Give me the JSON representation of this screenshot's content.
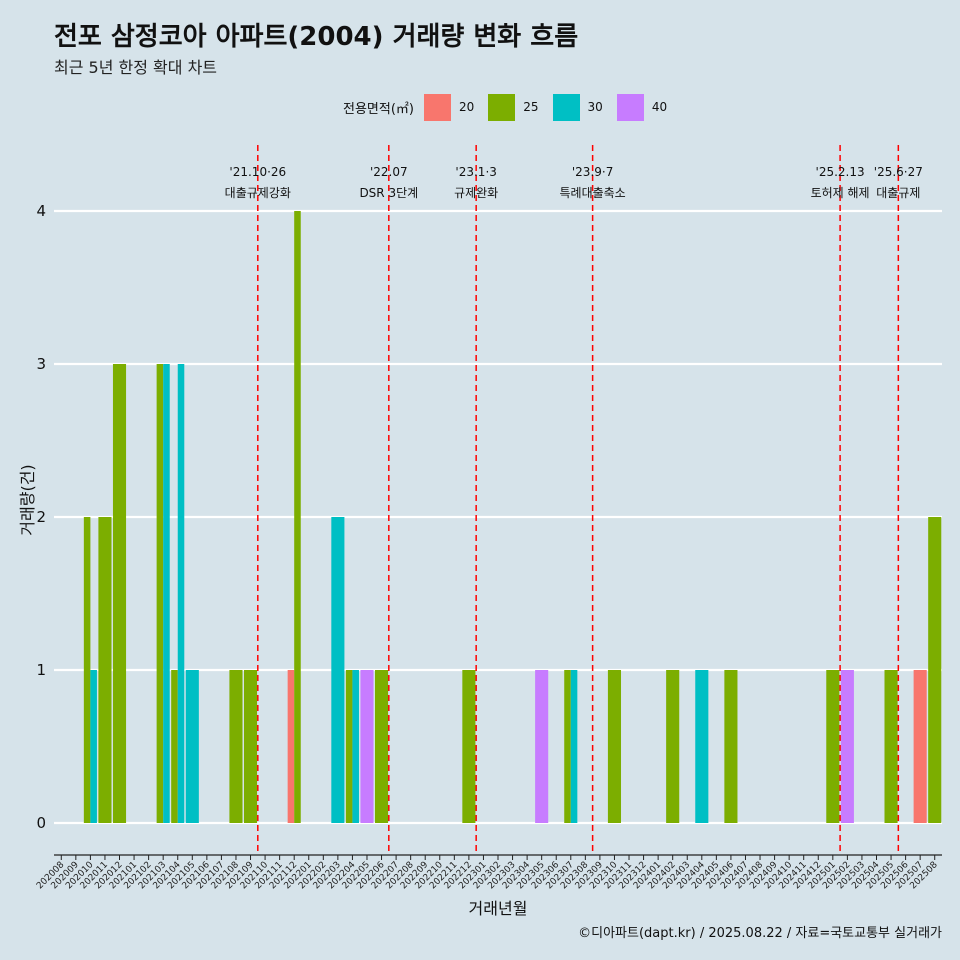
{
  "title": "전포 삼정코아 아파트(2004) 거래량 변화 흐름",
  "subtitle": "최근 5년 한정 확대 차트",
  "caption": "©디아파트(dapt.kr) / 2025.08.22 / 자료=국토교통부 실거래가",
  "legend": {
    "title": "전용면적(㎡)",
    "items": [
      {
        "label": "20",
        "color": "#f8766d"
      },
      {
        "label": "25",
        "color": "#7cae00"
      },
      {
        "label": "30",
        "color": "#00bfc4"
      },
      {
        "label": "40",
        "color": "#c77cff"
      }
    ]
  },
  "chart_data": {
    "type": "bar",
    "xlabel": "거래년월",
    "ylabel": "거래량(건)",
    "ylim": [
      0,
      4
    ],
    "yticks": [
      0,
      1,
      2,
      3,
      4
    ],
    "grid": true,
    "categories": [
      "202008",
      "202009",
      "202010",
      "202011",
      "202012",
      "202101",
      "202102",
      "202103",
      "202104",
      "202105",
      "202106",
      "202107",
      "202108",
      "202109",
      "202110",
      "202111",
      "202112",
      "202201",
      "202202",
      "202203",
      "202204",
      "202205",
      "202206",
      "202207",
      "202208",
      "202209",
      "202210",
      "202211",
      "202212",
      "202301",
      "202302",
      "202303",
      "202304",
      "202305",
      "202306",
      "202307",
      "202308",
      "202309",
      "202310",
      "202311",
      "202312",
      "202401",
      "202402",
      "202403",
      "202404",
      "202405",
      "202406",
      "202407",
      "202408",
      "202409",
      "202410",
      "202411",
      "202412",
      "202501",
      "202502",
      "202503",
      "202504",
      "202505",
      "202506",
      "202507",
      "202508"
    ],
    "series": [
      {
        "name": "20",
        "color": "#f8766d",
        "values": [
          0,
          0,
          0,
          0,
          0,
          0,
          0,
          0,
          0,
          0,
          0,
          0,
          0,
          0,
          0,
          0,
          1,
          0,
          0,
          0,
          0,
          0,
          0,
          0,
          0,
          0,
          0,
          0,
          0,
          0,
          0,
          0,
          0,
          0,
          0,
          0,
          0,
          0,
          0,
          0,
          0,
          0,
          0,
          0,
          0,
          0,
          0,
          0,
          0,
          0,
          0,
          0,
          0,
          0,
          0,
          0,
          0,
          0,
          0,
          1,
          0
        ]
      },
      {
        "name": "25",
        "color": "#7cae00",
        "values": [
          0,
          0,
          2,
          2,
          3,
          0,
          0,
          3,
          1,
          0,
          0,
          0,
          1,
          1,
          0,
          0,
          4,
          0,
          0,
          0,
          1,
          0,
          1,
          0,
          0,
          0,
          0,
          0,
          1,
          0,
          0,
          0,
          0,
          0,
          0,
          1,
          0,
          0,
          1,
          0,
          0,
          0,
          1,
          0,
          0,
          0,
          1,
          0,
          0,
          0,
          0,
          0,
          0,
          1,
          0,
          0,
          0,
          1,
          0,
          0,
          2
        ]
      },
      {
        "name": "30",
        "color": "#00bfc4",
        "values": [
          0,
          0,
          1,
          0,
          0,
          0,
          0,
          3,
          3,
          1,
          0,
          0,
          0,
          0,
          0,
          0,
          0,
          0,
          0,
          2,
          1,
          0,
          0,
          0,
          0,
          0,
          0,
          0,
          0,
          0,
          0,
          0,
          0,
          0,
          0,
          1,
          0,
          0,
          0,
          0,
          0,
          0,
          0,
          0,
          1,
          0,
          0,
          0,
          0,
          0,
          0,
          0,
          0,
          0,
          0,
          0,
          0,
          0,
          0,
          0,
          0
        ]
      },
      {
        "name": "40",
        "color": "#c77cff",
        "values": [
          0,
          0,
          0,
          0,
          0,
          0,
          0,
          0,
          0,
          0,
          0,
          0,
          0,
          0,
          0,
          0,
          0,
          0,
          0,
          0,
          0,
          1,
          0,
          0,
          0,
          0,
          0,
          0,
          0,
          0,
          0,
          0,
          0,
          1,
          0,
          0,
          0,
          0,
          0,
          0,
          0,
          0,
          0,
          0,
          0,
          0,
          0,
          0,
          0,
          0,
          0,
          0,
          0,
          0,
          1,
          0,
          0,
          0,
          0,
          0,
          0
        ]
      }
    ],
    "annotations": [
      {
        "category": "202110",
        "date": "'21.10·26",
        "label": "대출규제강화"
      },
      {
        "category": "202207",
        "date": "'22.07",
        "label": "DSR 3단계"
      },
      {
        "category": "202301",
        "date": "'23.1·3",
        "label": "규제완화"
      },
      {
        "category": "202309",
        "date": "'23.9·7",
        "label": "특례대출축소"
      },
      {
        "category": "202502",
        "date": "'25.2.13",
        "label": "토허제 해제"
      },
      {
        "category": "202506",
        "date": "'25.6·27",
        "label": "대출규제"
      }
    ],
    "annotation_color": "#ff0000"
  }
}
